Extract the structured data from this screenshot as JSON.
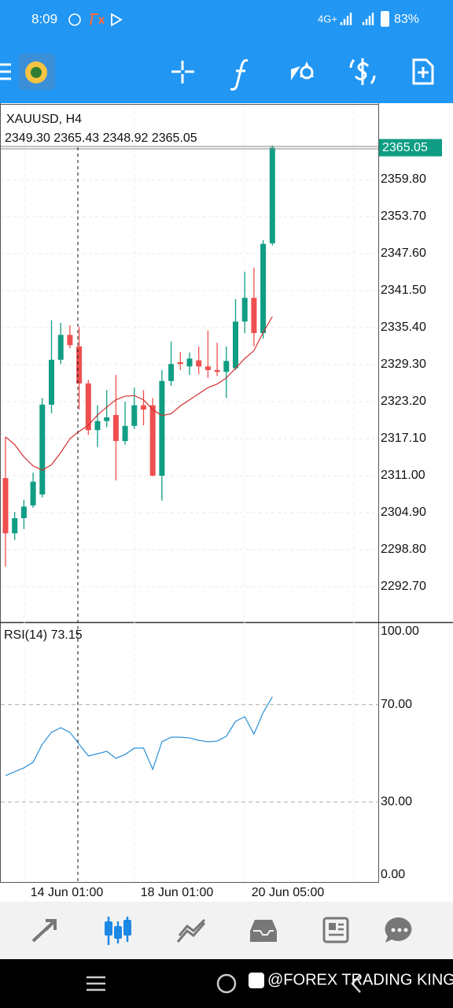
{
  "status_bar": {
    "time": "8:09",
    "network": "4G+",
    "battery": "83%"
  },
  "chart_data": {
    "type": "candlestick",
    "title": "XAUUSD, H4",
    "ohlc_label": "2349.30 2365.43 2348.92 2365.05",
    "up_color": "#0f9d84",
    "down_color": "#ef4f4f",
    "open": [
      2310.6,
      2301.5,
      2304.0,
      2306.1,
      2307.9,
      2322.7,
      2330.1,
      2334.2,
      2332.3,
      2326.2,
      2318.5,
      2320.0,
      2321.0,
      2316.7,
      2319.2,
      2322.6,
      2322.6,
      2311.0,
      2326.6,
      2329.7,
      2329.0,
      2330.0,
      2329.0,
      2328.4,
      2328.1,
      2328.7,
      2336.4,
      2340.3,
      2334.5,
      2349.3
    ],
    "high": [
      2317.4,
      2305.0,
      2307.0,
      2311.5,
      2323.8,
      2336.6,
      2336.2,
      2335.8,
      2335.5,
      2326.8,
      2322.6,
      2325.1,
      2327.6,
      2323.2,
      2325.5,
      2325.1,
      2323.8,
      2328.4,
      2333.1,
      2331.4,
      2331.3,
      2332.3,
      2334.9,
      2332.9,
      2332.3,
      2340.1,
      2344.6,
      2345.3,
      2349.8,
      2365.43
    ],
    "low": [
      2296.0,
      2300.4,
      2302.2,
      2305.7,
      2307.4,
      2321.3,
      2329.4,
      2332.0,
      2321.9,
      2317.7,
      2315.7,
      2319.0,
      2310.2,
      2316.1,
      2318.7,
      2319.3,
      2310.9,
      2306.9,
      2325.8,
      2328.4,
      2327.6,
      2327.7,
      2327.1,
      2327.4,
      2323.8,
      2328.4,
      2334.5,
      2332.3,
      2333.6,
      2348.92
    ],
    "close": [
      2301.5,
      2304.0,
      2305.9,
      2310.0,
      2322.7,
      2330.1,
      2334.2,
      2332.5,
      2326.2,
      2318.5,
      2320.0,
      2320.6,
      2316.7,
      2319.2,
      2322.6,
      2321.9,
      2311.0,
      2326.6,
      2329.4,
      2329.4,
      2330.3,
      2329.0,
      2328.4,
      2328.1,
      2329.9,
      2336.4,
      2340.3,
      2334.5,
      2349.2,
      2365.05
    ],
    "ma": {
      "color": "#d32f2f",
      "values": [
        2317.4,
        2316.1,
        2314.1,
        2312.6,
        2311.9,
        2312.8,
        2314.8,
        2317.1,
        2318.3,
        2319.3,
        2321.0,
        2322.3,
        2323.5,
        2324.1,
        2324.2,
        2323.5,
        2321.9,
        2320.9,
        2321.2,
        2322.5,
        2323.5,
        2324.5,
        2325.5,
        2326.1,
        2327.1,
        2328.7,
        2330.3,
        2331.6,
        2334.6,
        2337.2
      ]
    },
    "ylim": [
      2286.86,
      2372.13
    ],
    "yticks": [
      {
        "value": 2359.8,
        "label": "2359.80"
      },
      {
        "value": 2353.7,
        "label": "2353.70"
      },
      {
        "value": 2347.6,
        "label": "2347.60"
      },
      {
        "value": 2341.5,
        "label": "2341.50"
      },
      {
        "value": 2335.4,
        "label": "2335.40"
      },
      {
        "value": 2329.3,
        "label": "2329.30"
      },
      {
        "value": 2323.2,
        "label": "2323.20"
      },
      {
        "value": 2317.1,
        "label": "2317.10"
      },
      {
        "value": 2311.0,
        "label": "2311.00"
      },
      {
        "value": 2304.9,
        "label": "2304.90"
      },
      {
        "value": 2298.8,
        "label": "2298.80"
      },
      {
        "value": 2292.7,
        "label": "2292.70"
      }
    ],
    "last_price": {
      "value": 2365.05,
      "label": "2365.05"
    },
    "x_labels": [
      "14 Jun 01:00",
      "18 Jun 01:00",
      "20 Jun 05:00"
    ],
    "rsi": {
      "label": "RSI(14) 73.15",
      "color": "#2b8fd6",
      "values": [
        40.8,
        42.4,
        44.0,
        46.3,
        53.7,
        58.6,
        60.5,
        58.6,
        53.7,
        48.9,
        49.8,
        50.8,
        47.9,
        49.5,
        52.1,
        52.1,
        43.4,
        54.7,
        56.6,
        56.6,
        56.3,
        55.3,
        54.7,
        55.0,
        57.0,
        63.1,
        65.0,
        57.9,
        66.7,
        73.15
      ],
      "ylim": [
        0,
        100
      ],
      "yticks": [
        {
          "value": 100,
          "label": "100.00"
        },
        {
          "value": 70,
          "label": "70.00"
        },
        {
          "value": 30,
          "label": "30.00"
        },
        {
          "value": 0,
          "label": "0.00"
        }
      ]
    }
  },
  "watermark": "@FOREX TRADING KING"
}
